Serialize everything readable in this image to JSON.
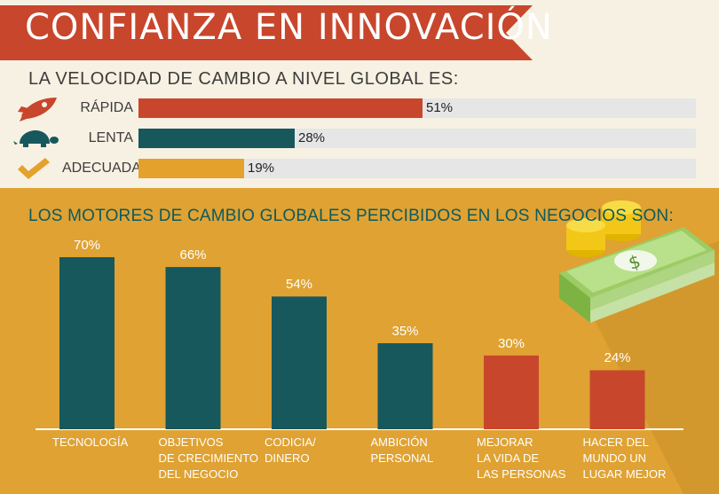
{
  "header": {
    "title": "CONFIANZA EN INNOVACIÓN"
  },
  "speed": {
    "title": "LA VELOCIDAD DE CAMBIO A NIVEL GLOBAL ES:",
    "items": [
      {
        "label": "RÁPIDA",
        "value": 51,
        "value_label": "51%",
        "color": "#c8462c",
        "icon": "rocket-icon"
      },
      {
        "label": "LENTA",
        "value": 28,
        "value_label": "28%",
        "color": "#17585d",
        "icon": "turtle-icon"
      },
      {
        "label": "ADECUADA",
        "value": 19,
        "value_label": "19%",
        "color": "#e4a12b",
        "icon": "checkmark-icon"
      }
    ]
  },
  "drivers": {
    "title": "LOS MOTORES DE CAMBIO GLOBALES PERCIBIDOS EN LOS NEGOCIOS SON:"
  },
  "chart_data": [
    {
      "type": "bar",
      "orientation": "horizontal",
      "title": "LA VELOCIDAD DE CAMBIO A NIVEL GLOBAL ES:",
      "categories": [
        "RÁPIDA",
        "LENTA",
        "ADECUADA"
      ],
      "values": [
        51,
        28,
        19
      ],
      "data_labels": [
        "51%",
        "28%",
        "19%"
      ],
      "xlim": [
        0,
        100
      ],
      "grid": false,
      "colors": [
        "#c8462c",
        "#17585d",
        "#e4a12b"
      ]
    },
    {
      "type": "bar",
      "orientation": "vertical",
      "title": "LOS MOTORES DE CAMBIO GLOBALES PERCIBIDOS EN LOS NEGOCIOS SON:",
      "categories": [
        "TECNOLOGÍA",
        "OBJETIVOS\nDE CRECIMIENTO\nDEL NEGOCIO",
        "CODICIA/\nDINERO",
        "AMBICIÓN\nPERSONAL",
        "MEJORAR\nLA VIDA DE\nLAS PERSONAS",
        "HACER DEL\nMUNDO UN\nLUGAR MEJOR"
      ],
      "values": [
        70,
        66,
        54,
        35,
        30,
        24
      ],
      "data_labels": [
        "70%",
        "66%",
        "54%",
        "35%",
        "30%",
        "24%"
      ],
      "ylim": [
        0,
        100
      ],
      "grid": false,
      "colors": [
        "#17585d",
        "#17585d",
        "#17585d",
        "#17585d",
        "#c8462c",
        "#c8462c"
      ]
    }
  ],
  "colors": {
    "banner": "#c8462c",
    "top_bg": "#f7f1e3",
    "bottom_bg": "#dfa233",
    "teal": "#17585d",
    "red": "#c8462c",
    "track": "#e6e6e6"
  }
}
